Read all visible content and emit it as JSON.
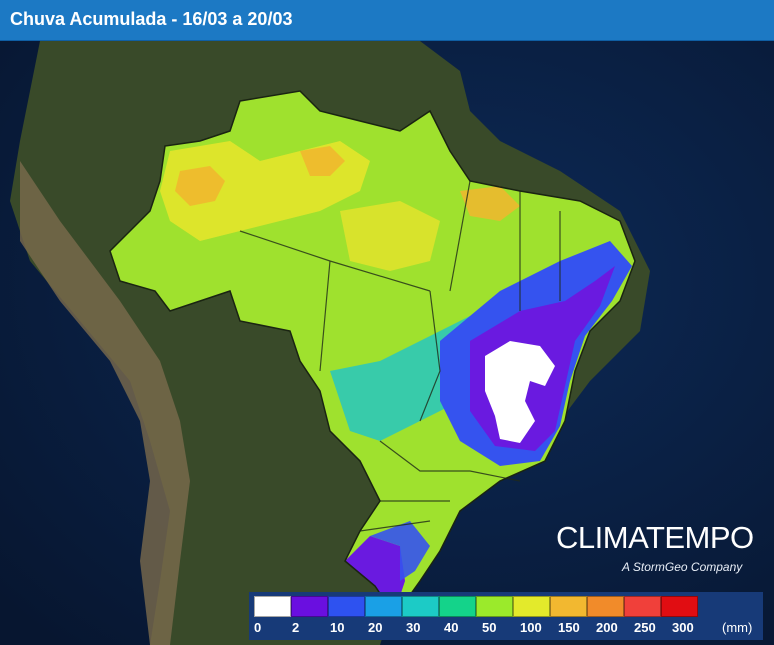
{
  "header": {
    "title": "Chuva Acumulada - 16/03 a 20/03"
  },
  "brand": {
    "name": "CLIMATEMPO",
    "tagline": "A StormGeo Company"
  },
  "legend": {
    "unit": "(mm)",
    "thresholds": [
      "0",
      "2",
      "10",
      "20",
      "30",
      "40",
      "50",
      "100",
      "150",
      "200",
      "250",
      "300"
    ],
    "colors": [
      "#ffffff",
      "#6a0fe0",
      "#2e52f0",
      "#1aa0e6",
      "#1ccbc6",
      "#14d38a",
      "#9bea2b",
      "#e3ea2b",
      "#f2b830",
      "#f18b2a",
      "#f0403a",
      "#e10d12"
    ]
  },
  "colors": {
    "title_bar": "#1c79c4",
    "ocean": "#0b2750",
    "land": "#3a4c2a"
  }
}
